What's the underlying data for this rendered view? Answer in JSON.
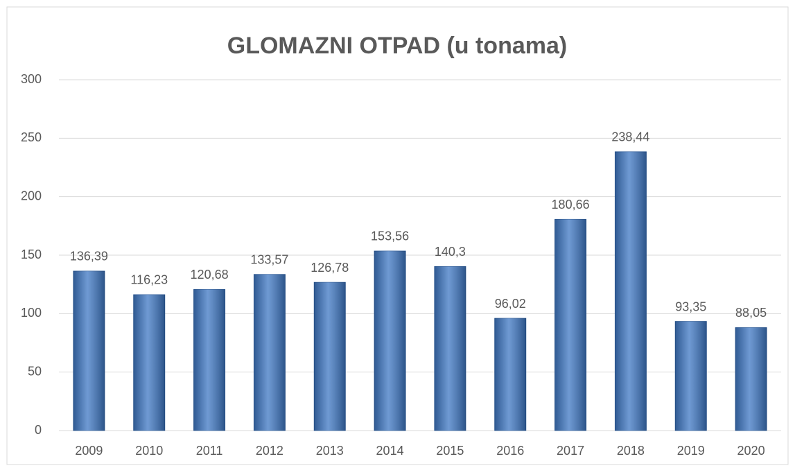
{
  "chart_data": {
    "type": "bar",
    "title": "GLOMAZNI OTPAD (u tonama)",
    "categories": [
      "2009",
      "2010",
      "2011",
      "2012",
      "2013",
      "2014",
      "2015",
      "2016",
      "2017",
      "2018",
      "2019",
      "2020"
    ],
    "values": [
      136.39,
      116.23,
      120.68,
      133.57,
      126.78,
      153.56,
      140.3,
      96.02,
      180.66,
      238.44,
      93.35,
      88.05
    ],
    "value_labels": [
      "136,39",
      "116,23",
      "120,68",
      "133,57",
      "126,78",
      "153,56",
      "140,3",
      "96,02",
      "180,66",
      "238,44",
      "93,35",
      "88,05"
    ],
    "color": "#3f78c4",
    "ylim": [
      0,
      300
    ],
    "yticks": [
      0,
      50,
      100,
      150,
      200,
      250,
      300
    ],
    "grid": true
  }
}
